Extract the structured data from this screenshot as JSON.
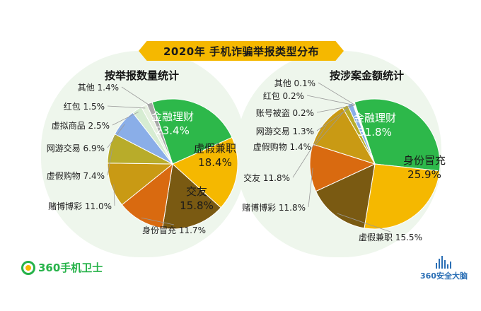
{
  "header": {
    "title": "2020年 手机诈骗举报类型分布"
  },
  "chart_data": [
    {
      "type": "pie",
      "title": "按举报数量统计",
      "unit": "%",
      "slices": [
        {
          "label": "金融理财",
          "value": 23.4,
          "color": "#2db84a"
        },
        {
          "label": "虚假兼职",
          "value": 18.4,
          "color": "#f5b800"
        },
        {
          "label": "交友",
          "value": 15.8,
          "color": "#7a5a12"
        },
        {
          "label": "身份冒充",
          "value": 11.7,
          "color": "#d96a10"
        },
        {
          "label": "赌博博彩",
          "value": 11.0,
          "color": "#c99a14"
        },
        {
          "label": "虚假购物",
          "value": 7.4,
          "color": "#b8ac2a"
        },
        {
          "label": "网游交易",
          "value": 6.9,
          "color": "#8aaee8"
        },
        {
          "label": "虚拟商品",
          "value": 2.5,
          "color": "#d6ecd2"
        },
        {
          "label": "红包",
          "value": 1.5,
          "color": "#e6f1e0"
        },
        {
          "label": "其他",
          "value": 1.4,
          "color": "#a8a8a8"
        }
      ]
    },
    {
      "type": "pie",
      "title": "按涉案金额统计",
      "unit": "%",
      "slices": [
        {
          "label": "金融理财",
          "value": 31.8,
          "color": "#2db84a"
        },
        {
          "label": "身份冒充",
          "value": 25.9,
          "color": "#f5b800"
        },
        {
          "label": "虚假兼职",
          "value": 15.5,
          "color": "#7a5a12"
        },
        {
          "label": "赌博博彩",
          "value": 11.8,
          "color": "#d96a10"
        },
        {
          "label": "交友",
          "value": 11.8,
          "color": "#c99a14"
        },
        {
          "label": "虚假购物",
          "value": 1.4,
          "color": "#b8ac2a"
        },
        {
          "label": "网游交易",
          "value": 1.3,
          "color": "#8aaee8"
        },
        {
          "label": "账号被盗",
          "value": 0.2,
          "color": "#d6ecd2"
        },
        {
          "label": "红包",
          "value": 0.2,
          "color": "#e6f1e0"
        },
        {
          "label": "其他",
          "value": 0.1,
          "color": "#a8a8a8"
        }
      ]
    }
  ],
  "footer": {
    "left_brand": "360手机卫士",
    "right_brand": "360安全大脑"
  }
}
